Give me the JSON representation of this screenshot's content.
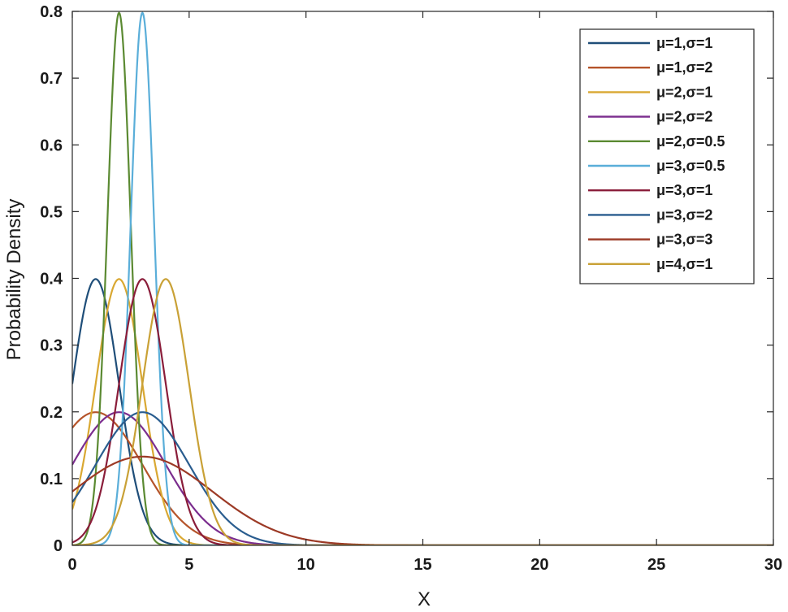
{
  "chart_data": {
    "type": "line",
    "title": "",
    "xlabel": "X",
    "ylabel": "Probability Density",
    "xlim": [
      0,
      30
    ],
    "ylim": [
      0,
      0.8
    ],
    "xticks": [
      0,
      5,
      10,
      15,
      20,
      25,
      30
    ],
    "yticks": [
      0,
      0.1,
      0.2,
      0.3,
      0.4,
      0.5,
      0.6,
      0.7,
      0.8
    ],
    "xtick_labels": [
      "0",
      "5",
      "10",
      "15",
      "20",
      "25",
      "30"
    ],
    "ytick_labels": [
      "0",
      "0.1",
      "0.2",
      "0.3",
      "0.4",
      "0.5",
      "0.6",
      "0.7",
      "0.8"
    ],
    "grid": false,
    "legend_position": "top-right",
    "curve": "normal probability density function",
    "series": [
      {
        "name": "μ=1,σ=1",
        "mu": 1,
        "sigma": 1,
        "color": "#1f4e79"
      },
      {
        "name": "μ=1,σ=2",
        "mu": 1,
        "sigma": 2,
        "color": "#b5542a"
      },
      {
        "name": "μ=2,σ=1",
        "mu": 2,
        "sigma": 1,
        "color": "#d9a832"
      },
      {
        "name": "μ=2,σ=2",
        "mu": 2,
        "sigma": 2,
        "color": "#7b2d8e"
      },
      {
        "name": "μ=2,σ=0.5",
        "mu": 2,
        "sigma": 0.5,
        "color": "#5b8a32"
      },
      {
        "name": "μ=3,σ=0.5",
        "mu": 3,
        "sigma": 0.5,
        "color": "#5aaed9"
      },
      {
        "name": "μ=3,σ=1",
        "mu": 3,
        "sigma": 1,
        "color": "#8a1d3a"
      },
      {
        "name": "μ=3,σ=2",
        "mu": 3,
        "sigma": 2,
        "color": "#2a5d8f"
      },
      {
        "name": "μ=3,σ=3",
        "mu": 3,
        "sigma": 3,
        "color": "#9c3a26"
      },
      {
        "name": "μ=4,σ=1",
        "mu": 4,
        "sigma": 1,
        "color": "#c9a136"
      }
    ]
  }
}
